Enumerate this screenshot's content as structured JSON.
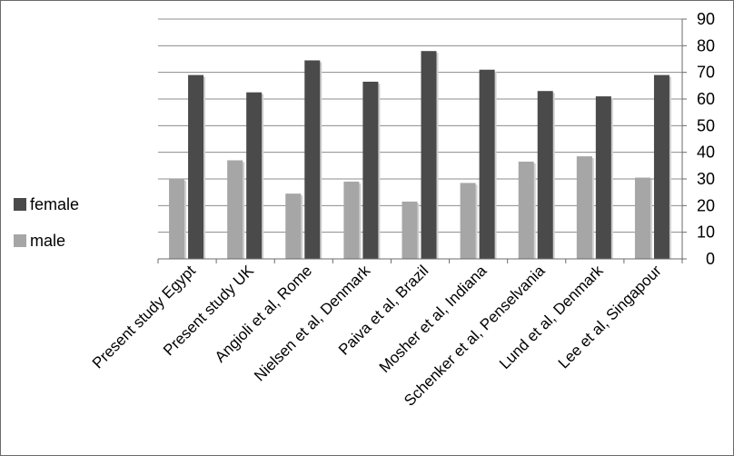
{
  "chart_data": {
    "type": "bar",
    "title": "",
    "xlabel": "",
    "ylabel": "",
    "ylim": [
      0,
      90
    ],
    "yticks": [
      0,
      10,
      20,
      30,
      40,
      50,
      60,
      70,
      80,
      90
    ],
    "y_axis_side": "right",
    "grid": true,
    "legend_position": "left",
    "categories": [
      "Present study Egypt",
      "Present study UK",
      "Angioli et al, Rome",
      "Nielsen et al, Denmark",
      "Paiva et al, Brazil",
      "Mosher et al, Indiana",
      "Schenker et al, Penselvania",
      "Lund et al, Denmark",
      "Lee et al, Singapour"
    ],
    "series": [
      {
        "name": "male",
        "color": "#a6a6a6",
        "values": [
          30,
          37,
          24.5,
          29,
          21.5,
          28.5,
          36.5,
          38.5,
          30.5
        ]
      },
      {
        "name": "female",
        "color": "#4a4a4a",
        "values": [
          69,
          62.5,
          74.5,
          66.5,
          78,
          71,
          63,
          61,
          69
        ]
      }
    ],
    "legend": [
      {
        "name": "female",
        "color": "#4a4a4a"
      },
      {
        "name": "male",
        "color": "#a6a6a6"
      }
    ]
  }
}
